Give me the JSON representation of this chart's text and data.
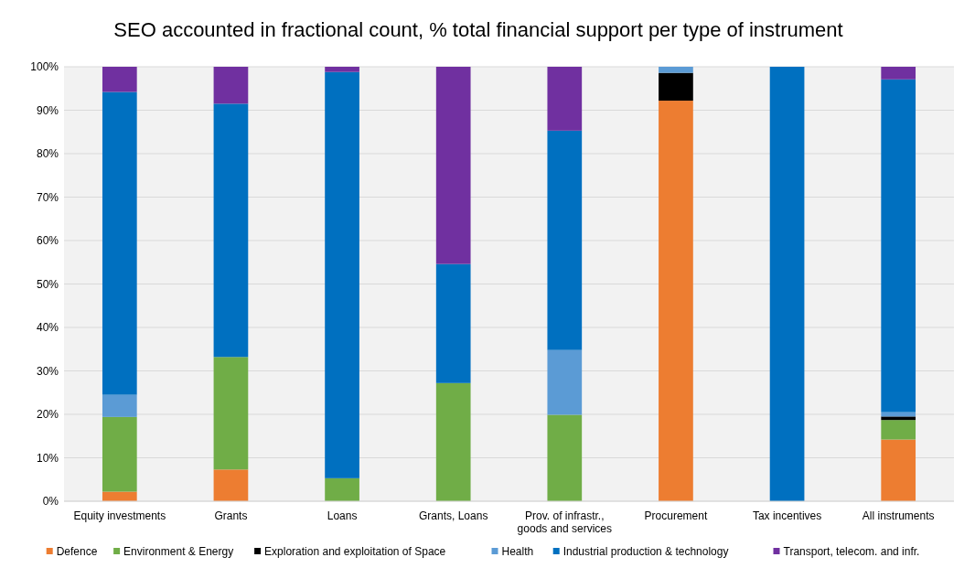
{
  "chart_data": {
    "type": "bar",
    "stacked": true,
    "title": "SEO accounted in fractional count, % total financial support per type of instrument",
    "categories": [
      "Equity investments",
      "Grants",
      "Loans",
      "Grants, Loans",
      "Prov. of infrastr., goods and services",
      "Procurement",
      "Tax incentives",
      "All instruments"
    ],
    "series": [
      {
        "name": "Defence",
        "color": "#ed7d31",
        "values": [
          2.2,
          7.3,
          0,
          0,
          0,
          92.2,
          0,
          14.2
        ]
      },
      {
        "name": "Environment & Energy",
        "color": "#70ad47",
        "values": [
          17.2,
          25.9,
          5.3,
          27.2,
          19.9,
          0,
          0,
          4.5
        ]
      },
      {
        "name": "Exploration and exploitation of Space",
        "color": "#000000",
        "values": [
          0,
          0,
          0,
          0,
          0,
          6.4,
          0,
          0.8
        ]
      },
      {
        "name": "Health",
        "color": "#5b9bd5",
        "values": [
          5.1,
          0,
          0,
          0,
          14.9,
          1.4,
          0,
          1.0
        ]
      },
      {
        "name": "Industrial production & technology",
        "color": "#0070c0",
        "values": [
          69.7,
          58.3,
          93.5,
          27.4,
          50.5,
          0,
          100,
          76.6
        ]
      },
      {
        "name": "Transport, telecom. and infr.",
        "color": "#7030a0",
        "values": [
          5.8,
          8.5,
          1.2,
          45.4,
          14.7,
          0,
          0,
          2.9
        ]
      }
    ],
    "ylim": [
      0,
      100
    ],
    "yticks": [
      {
        "value": 0,
        "label": "0%"
      },
      {
        "value": 10,
        "label": "10%"
      },
      {
        "value": 20,
        "label": "20%"
      },
      {
        "value": 30,
        "label": "30%"
      },
      {
        "value": 40,
        "label": "40%"
      },
      {
        "value": 50,
        "label": "50%"
      },
      {
        "value": 60,
        "label": "60%"
      },
      {
        "value": 70,
        "label": "70%"
      },
      {
        "value": 80,
        "label": "80%"
      },
      {
        "value": 90,
        "label": "90%"
      },
      {
        "value": 100,
        "label": "100%"
      }
    ],
    "grid": "y",
    "legend": "bottom"
  }
}
